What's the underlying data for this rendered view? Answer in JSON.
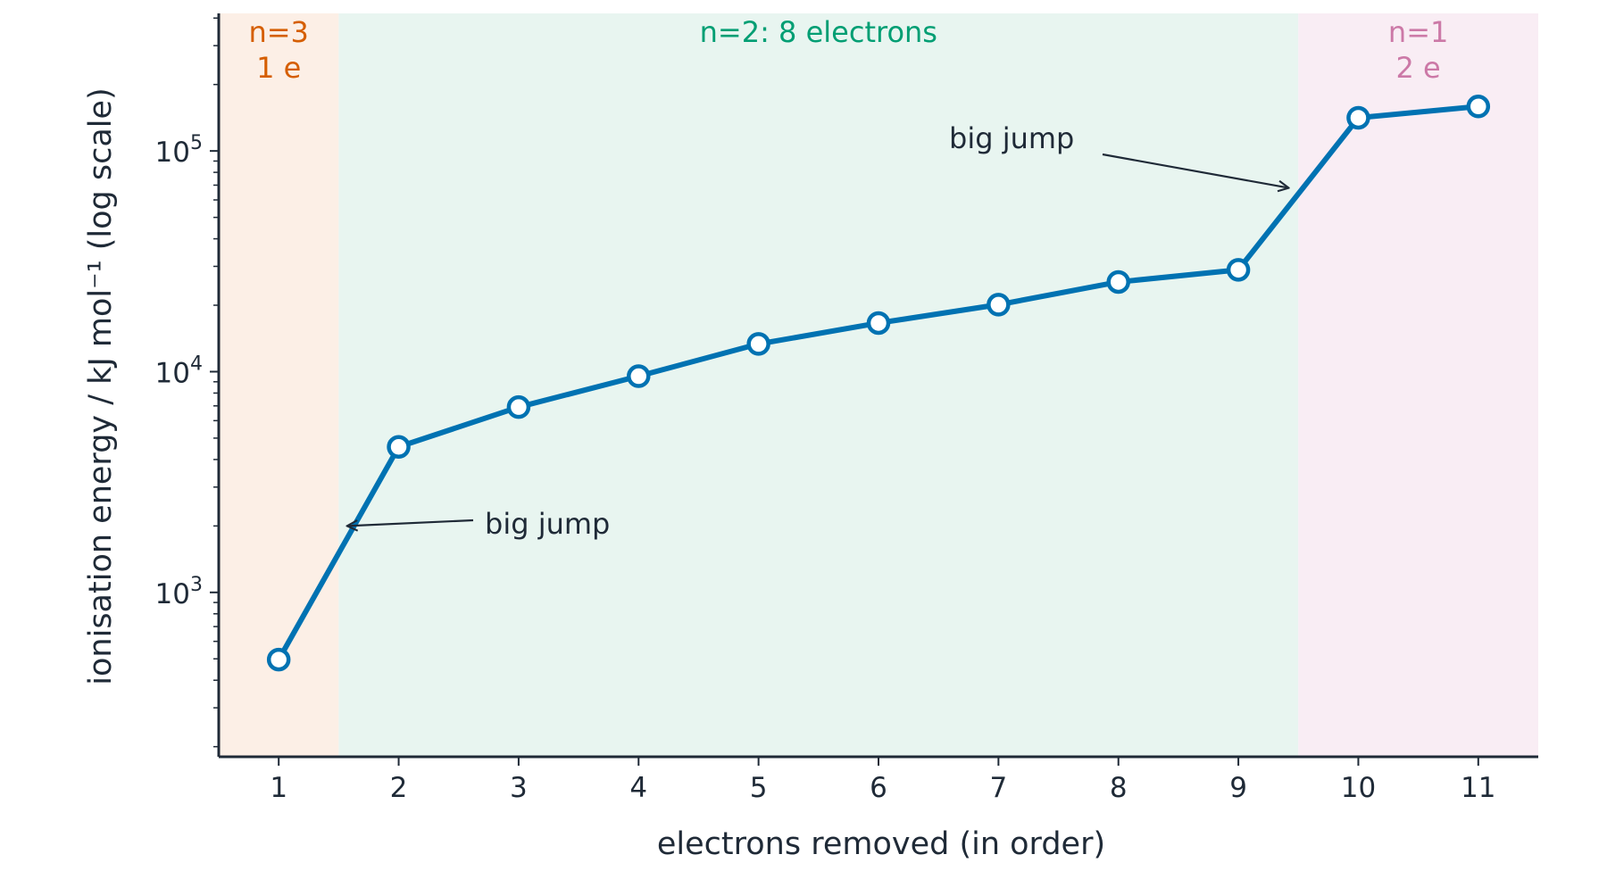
{
  "chart_data": {
    "type": "line",
    "xlabel": "electrons removed (in order)",
    "ylabel": "ionisation energy / kJ mol⁻¹  (log scale)",
    "yscale": "log",
    "xlim": [
      0.5,
      11.5
    ],
    "ylim": [
      180,
      420000
    ],
    "grid": false,
    "x": [
      1,
      2,
      3,
      4,
      5,
      6,
      7,
      8,
      9,
      10,
      11
    ],
    "values": [
      496,
      4562,
      6910,
      9543,
      13354,
      16613,
      20117,
      25496,
      28932,
      141362,
      159076
    ],
    "x_ticks": [
      "1",
      "2",
      "3",
      "4",
      "5",
      "6",
      "7",
      "8",
      "9",
      "10",
      "11"
    ],
    "y_ticks": [
      {
        "value": 1000,
        "base": "10",
        "exp": "3"
      },
      {
        "value": 10000,
        "base": "10",
        "exp": "4"
      },
      {
        "value": 100000,
        "base": "10",
        "exp": "5"
      }
    ],
    "regions": [
      {
        "x0": 0.5,
        "x1": 1.5,
        "label_lines": [
          "n=3",
          "1 e"
        ],
        "fill": "#fcefe6",
        "text_color": "#d55e00"
      },
      {
        "x0": 1.5,
        "x1": 9.5,
        "label_lines": [
          "n=2: 8 electrons"
        ],
        "fill": "#e8f5f0",
        "text_color": "#009e73"
      },
      {
        "x0": 9.5,
        "x1": 11.5,
        "label_lines": [
          "n=1",
          "2 e"
        ],
        "fill": "#f9edf4",
        "text_color": "#cc79a7"
      }
    ],
    "annotations": [
      {
        "text": "big jump",
        "x": 1.57,
        "y": 2000
      },
      {
        "text": "big jump",
        "x": 9.42,
        "y": 68000
      }
    ],
    "colors": {
      "line": "#0072b2",
      "axis": "#1f2a37",
      "marker_fill": "#ffffff"
    }
  }
}
